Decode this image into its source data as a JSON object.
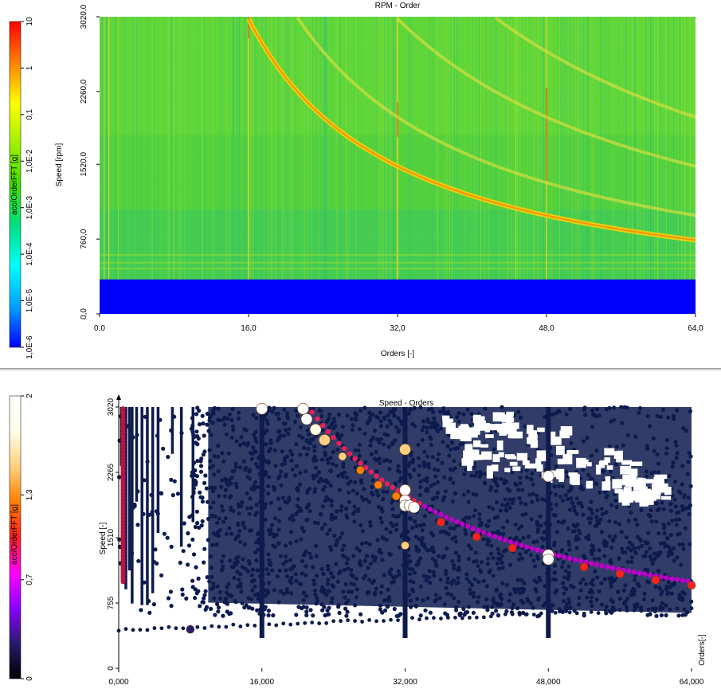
{
  "chart_data": [
    {
      "type": "heatmap",
      "title": "RPM - Order",
      "xlabel": "Orders [-]",
      "ylabel": "Speed [rpm]",
      "xlim": [
        0,
        64
      ],
      "ylim": [
        0,
        3020
      ],
      "x_ticks": [
        "0,0",
        "16,0",
        "32,0",
        "48,0",
        "64,0"
      ],
      "x_tick_values": [
        0,
        16,
        32,
        48,
        64
      ],
      "y_ticks": [
        "0,0",
        "760,0",
        "1520,0",
        "2260,0",
        "3020,0"
      ],
      "y_tick_values": [
        0,
        760,
        1520,
        2260,
        3020
      ],
      "colorbar": {
        "label": "acc/OrderFFT [g]",
        "scale": "log",
        "ticks": [
          "1,0E-6",
          "1,0E-5",
          "1,0E-4",
          "1,0E-3",
          "1,0E-2",
          "0,1",
          "1",
          "10"
        ],
        "tick_values": [
          1e-06,
          1e-05,
          0.0001,
          0.001,
          0.01,
          0.1,
          1,
          10
        ],
        "colormap": [
          "#0000ff",
          "#00a0ff",
          "#00ffff",
          "#00e080",
          "#40e000",
          "#a0f000",
          "#ffff00",
          "#ff8000",
          "#ff0000"
        ]
      },
      "no_data_below_rpm": 350,
      "vertical_lines_orders": [
        0.5,
        1,
        16,
        32,
        48
      ],
      "hyperbolic_ridges_rpm_x_order": [
        48000,
        64000,
        96000,
        128000
      ],
      "background": "#52d23a"
    },
    {
      "type": "scatter",
      "title": "Speed - Orders",
      "xlabel": "Orders[-]",
      "ylabel": "Speed [-]",
      "xlim": [
        0,
        64
      ],
      "ylim": [
        0,
        3020
      ],
      "x_ticks": [
        "0,000",
        "16,000",
        "32,000",
        "48,000",
        "64,000"
      ],
      "x_tick_values": [
        0,
        16,
        32,
        48,
        64
      ],
      "y_ticks": [
        "0",
        "755",
        "1510",
        "2265",
        "3020"
      ],
      "y_tick_values": [
        0,
        755,
        1510,
        2265,
        3020
      ],
      "colorbar": {
        "label": "acc/OrderFFT [g]",
        "scale": "linear",
        "ticks": [
          "0",
          "0,7",
          "1,3",
          "2"
        ],
        "tick_values": [
          0,
          0.7,
          1.3,
          2
        ],
        "colormap": [
          "#000000",
          "#2a1a6e",
          "#8a00ff",
          "#ff00ff",
          "#ff2020",
          "#ff8000",
          "#ffd080",
          "#ffffe8",
          "#ffffff"
        ]
      },
      "marker_color_base": "#0d1b4e",
      "highlight_points": [
        {
          "x": 8,
          "y": 450
        },
        {
          "x": 16,
          "y": 3000
        },
        {
          "x": 20.6,
          "y": 3000
        },
        {
          "x": 21,
          "y": 2880
        },
        {
          "x": 22,
          "y": 2760
        },
        {
          "x": 23,
          "y": 2640
        },
        {
          "x": 25,
          "y": 2450
        },
        {
          "x": 27,
          "y": 2290
        },
        {
          "x": 29,
          "y": 2120
        },
        {
          "x": 31,
          "y": 1990
        },
        {
          "x": 32,
          "y": 2530
        },
        {
          "x": 32,
          "y": 2060
        },
        {
          "x": 32,
          "y": 1940
        },
        {
          "x": 32,
          "y": 1880
        },
        {
          "x": 32,
          "y": 1420
        },
        {
          "x": 32.5,
          "y": 1880
        },
        {
          "x": 33,
          "y": 1860
        },
        {
          "x": 36,
          "y": 1690
        },
        {
          "x": 40,
          "y": 1520
        },
        {
          "x": 44,
          "y": 1390
        },
        {
          "x": 48,
          "y": 2220
        },
        {
          "x": 48,
          "y": 1310
        },
        {
          "x": 48,
          "y": 1260
        },
        {
          "x": 52,
          "y": 1170
        },
        {
          "x": 56,
          "y": 1090
        },
        {
          "x": 60,
          "y": 1020
        },
        {
          "x": 64,
          "y": 960
        }
      ],
      "highlight_values": [
        0.3,
        1.9,
        1.9,
        2.0,
        1.7,
        1.6,
        1.4,
        1.3,
        1.3,
        1.3,
        1.6,
        2.0,
        2.0,
        2.0,
        1.4,
        2.0,
        1.9,
        1.1,
        1.0,
        1.0,
        2.0,
        1.9,
        2.0,
        0.9,
        0.9,
        0.9,
        0.9
      ]
    }
  ]
}
